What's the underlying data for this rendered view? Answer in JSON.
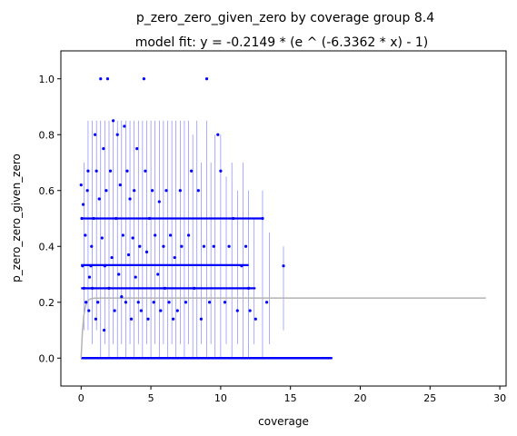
{
  "chart_data": {
    "type": "scatter",
    "title": "p_zero_zero_given_zero by coverage group 8.4",
    "subtitle": "model fit: y = -0.2149 * (e ^ (-6.3362 * x) - 1)",
    "xlabel": "coverage",
    "ylabel": "p_zero_zero_given_zero",
    "xlim": [
      -1.45,
      30.45
    ],
    "ylim": [
      -0.1,
      1.1
    ],
    "xticks": [
      0,
      5,
      10,
      15,
      20,
      25,
      30
    ],
    "xtick_labels": [
      "0",
      "5",
      "10",
      "15",
      "20",
      "25",
      "30"
    ],
    "yticks": [
      0.0,
      0.2,
      0.4,
      0.6,
      0.8,
      1.0
    ],
    "ytick_labels": [
      "0.0",
      "0.2",
      "0.4",
      "0.6",
      "0.8",
      "1.0"
    ],
    "grid": false,
    "colors": {
      "points": "#0000ff",
      "error_bars": "#0000ff",
      "fit": "#b3b3b3",
      "axes": "#000000"
    },
    "fit_curve": {
      "a": -0.2149,
      "b": -6.3362,
      "x_range": [
        0,
        29
      ],
      "plateau": 0.2149
    },
    "scatter_points": [
      {
        "x": 0.0,
        "y": 0.62
      },
      {
        "x": 0.05,
        "y": 0.5
      },
      {
        "x": 0.1,
        "y": 0.33
      },
      {
        "x": 0.15,
        "y": 0.55
      },
      {
        "x": 0.2,
        "y": 0.25
      },
      {
        "x": 0.3,
        "y": 0.44
      },
      {
        "x": 0.35,
        "y": 0.2
      },
      {
        "x": 0.45,
        "y": 0.6
      },
      {
        "x": 0.5,
        "y": 0.67
      },
      {
        "x": 0.55,
        "y": 0.17
      },
      {
        "x": 0.6,
        "y": 0.29
      },
      {
        "x": 0.7,
        "y": 0.33
      },
      {
        "x": 0.75,
        "y": 0.4
      },
      {
        "x": 0.8,
        "y": 0.25
      },
      {
        "x": 0.9,
        "y": 0.5
      },
      {
        "x": 1.0,
        "y": 0.8
      },
      {
        "x": 1.05,
        "y": 0.14
      },
      {
        "x": 1.1,
        "y": 0.67
      },
      {
        "x": 1.2,
        "y": 0.2
      },
      {
        "x": 1.3,
        "y": 0.57
      },
      {
        "x": 1.4,
        "y": 1.0
      },
      {
        "x": 1.5,
        "y": 0.43
      },
      {
        "x": 1.6,
        "y": 0.75
      },
      {
        "x": 1.65,
        "y": 0.1
      },
      {
        "x": 1.7,
        "y": 0.33
      },
      {
        "x": 1.8,
        "y": 0.6
      },
      {
        "x": 1.9,
        "y": 1.0
      },
      {
        "x": 2.0,
        "y": 0.25
      },
      {
        "x": 2.1,
        "y": 0.67
      },
      {
        "x": 2.2,
        "y": 0.36
      },
      {
        "x": 2.3,
        "y": 0.85
      },
      {
        "x": 2.4,
        "y": 0.17
      },
      {
        "x": 2.5,
        "y": 0.5
      },
      {
        "x": 2.6,
        "y": 0.8
      },
      {
        "x": 2.7,
        "y": 0.3
      },
      {
        "x": 2.8,
        "y": 0.62
      },
      {
        "x": 2.9,
        "y": 0.22
      },
      {
        "x": 3.0,
        "y": 0.44
      },
      {
        "x": 3.1,
        "y": 0.83
      },
      {
        "x": 3.2,
        "y": 0.2
      },
      {
        "x": 3.3,
        "y": 0.67
      },
      {
        "x": 3.4,
        "y": 0.37
      },
      {
        "x": 3.5,
        "y": 0.57
      },
      {
        "x": 3.6,
        "y": 0.14
      },
      {
        "x": 3.7,
        "y": 0.43
      },
      {
        "x": 3.8,
        "y": 0.6
      },
      {
        "x": 3.9,
        "y": 0.29
      },
      {
        "x": 4.0,
        "y": 0.75
      },
      {
        "x": 4.1,
        "y": 0.2
      },
      {
        "x": 4.2,
        "y": 0.4
      },
      {
        "x": 4.3,
        "y": 0.17
      },
      {
        "x": 4.5,
        "y": 1.0
      },
      {
        "x": 4.6,
        "y": 0.67
      },
      {
        "x": 4.7,
        "y": 0.38
      },
      {
        "x": 4.8,
        "y": 0.14
      },
      {
        "x": 4.9,
        "y": 0.5
      },
      {
        "x": 5.1,
        "y": 0.6
      },
      {
        "x": 5.2,
        "y": 0.2
      },
      {
        "x": 5.3,
        "y": 0.44
      },
      {
        "x": 5.5,
        "y": 0.3
      },
      {
        "x": 5.6,
        "y": 0.56
      },
      {
        "x": 5.7,
        "y": 0.17
      },
      {
        "x": 5.9,
        "y": 0.4
      },
      {
        "x": 6.0,
        "y": 0.25
      },
      {
        "x": 6.1,
        "y": 0.6
      },
      {
        "x": 6.3,
        "y": 0.2
      },
      {
        "x": 6.4,
        "y": 0.44
      },
      {
        "x": 6.6,
        "y": 0.14
      },
      {
        "x": 6.7,
        "y": 0.36
      },
      {
        "x": 6.9,
        "y": 0.17
      },
      {
        "x": 7.1,
        "y": 0.6
      },
      {
        "x": 7.2,
        "y": 0.4
      },
      {
        "x": 7.5,
        "y": 0.2
      },
      {
        "x": 7.7,
        "y": 0.44
      },
      {
        "x": 7.9,
        "y": 0.67
      },
      {
        "x": 8.1,
        "y": 0.25
      },
      {
        "x": 8.4,
        "y": 0.6
      },
      {
        "x": 8.6,
        "y": 0.14
      },
      {
        "x": 8.8,
        "y": 0.4
      },
      {
        "x": 9.0,
        "y": 1.0
      },
      {
        "x": 9.2,
        "y": 0.2
      },
      {
        "x": 9.5,
        "y": 0.4
      },
      {
        "x": 9.8,
        "y": 0.8
      },
      {
        "x": 10.0,
        "y": 0.67
      },
      {
        "x": 10.3,
        "y": 0.2
      },
      {
        "x": 10.6,
        "y": 0.4
      },
      {
        "x": 10.9,
        "y": 0.5
      },
      {
        "x": 11.2,
        "y": 0.17
      },
      {
        "x": 11.5,
        "y": 0.33
      },
      {
        "x": 11.8,
        "y": 0.4
      },
      {
        "x": 12.0,
        "y": 0.25
      },
      {
        "x": 12.1,
        "y": 0.17
      },
      {
        "x": 12.5,
        "y": 0.14
      },
      {
        "x": 13.0,
        "y": 0.5
      },
      {
        "x": 13.3,
        "y": 0.2
      },
      {
        "x": 14.5,
        "y": 0.33
      }
    ],
    "error_bars": [
      {
        "x": 0.2,
        "low": 0.1,
        "high": 0.7
      },
      {
        "x": 0.5,
        "low": 0.1,
        "high": 0.85
      },
      {
        "x": 0.8,
        "low": 0.05,
        "high": 0.85
      },
      {
        "x": 1.1,
        "low": 0.1,
        "high": 0.85
      },
      {
        "x": 1.4,
        "low": 0.0,
        "high": 0.85
      },
      {
        "x": 1.7,
        "low": 0.05,
        "high": 0.85
      },
      {
        "x": 2.0,
        "low": 0.0,
        "high": 0.85
      },
      {
        "x": 2.3,
        "low": 0.05,
        "high": 0.85
      },
      {
        "x": 2.6,
        "low": 0.0,
        "high": 0.85
      },
      {
        "x": 2.9,
        "low": 0.05,
        "high": 0.85
      },
      {
        "x": 3.2,
        "low": 0.0,
        "high": 0.85
      },
      {
        "x": 3.5,
        "low": 0.05,
        "high": 0.85
      },
      {
        "x": 3.8,
        "low": 0.0,
        "high": 0.85
      },
      {
        "x": 4.1,
        "low": 0.05,
        "high": 0.85
      },
      {
        "x": 4.4,
        "low": 0.0,
        "high": 0.85
      },
      {
        "x": 4.7,
        "low": 0.05,
        "high": 0.85
      },
      {
        "x": 5.0,
        "low": 0.0,
        "high": 0.85
      },
      {
        "x": 5.3,
        "low": 0.05,
        "high": 0.85
      },
      {
        "x": 5.6,
        "low": 0.0,
        "high": 0.85
      },
      {
        "x": 5.9,
        "low": 0.05,
        "high": 0.85
      },
      {
        "x": 6.2,
        "low": 0.0,
        "high": 0.85
      },
      {
        "x": 6.5,
        "low": 0.05,
        "high": 0.85
      },
      {
        "x": 6.8,
        "low": 0.0,
        "high": 0.85
      },
      {
        "x": 7.1,
        "low": 0.05,
        "high": 0.85
      },
      {
        "x": 7.4,
        "low": 0.0,
        "high": 0.85
      },
      {
        "x": 7.7,
        "low": 0.05,
        "high": 0.85
      },
      {
        "x": 8.0,
        "low": 0.0,
        "high": 0.8
      },
      {
        "x": 8.3,
        "low": 0.0,
        "high": 0.85
      },
      {
        "x": 8.6,
        "low": 0.05,
        "high": 0.7
      },
      {
        "x": 9.0,
        "low": 0.0,
        "high": 0.85
      },
      {
        "x": 9.3,
        "low": 0.05,
        "high": 0.7
      },
      {
        "x": 9.6,
        "low": 0.0,
        "high": 0.8
      },
      {
        "x": 10.0,
        "low": 0.0,
        "high": 0.8
      },
      {
        "x": 10.4,
        "low": 0.05,
        "high": 0.65
      },
      {
        "x": 10.8,
        "low": 0.0,
        "high": 0.7
      },
      {
        "x": 11.2,
        "low": 0.05,
        "high": 0.6
      },
      {
        "x": 11.6,
        "low": 0.0,
        "high": 0.7
      },
      {
        "x": 12.0,
        "low": 0.0,
        "high": 0.6
      },
      {
        "x": 12.4,
        "low": 0.05,
        "high": 0.5
      },
      {
        "x": 13.0,
        "low": 0.0,
        "high": 0.6
      },
      {
        "x": 13.5,
        "low": 0.05,
        "high": 0.45
      },
      {
        "x": 14.5,
        "low": 0.1,
        "high": 0.4
      }
    ],
    "band_ys": [
      0.5,
      0.333,
      0.25
    ],
    "band_x_max": [
      13.0,
      12.0,
      12.5
    ],
    "zero_row": {
      "y": 0.0,
      "x_min": 0.0,
      "x_max": 18.0
    }
  }
}
